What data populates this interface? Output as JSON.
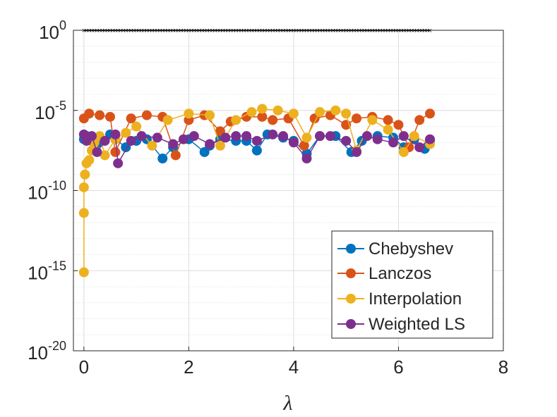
{
  "chart_data": {
    "type": "scatter",
    "title": "",
    "xlabel": "λ",
    "ylabel": "",
    "xlim": [
      -0.2,
      8
    ],
    "ylim_exp": [
      -20,
      0
    ],
    "yscale": "log",
    "grid": true,
    "x_ticks": [
      "0",
      "2",
      "4",
      "6",
      "8"
    ],
    "y_ticks": [
      {
        "base": "10",
        "exp": "0"
      },
      {
        "base": "10",
        "exp": "-5"
      },
      {
        "base": "10",
        "exp": "-10"
      },
      {
        "base": "10",
        "exp": "-15"
      },
      {
        "base": "10",
        "exp": "-20"
      }
    ],
    "legend_position": "bottom-right",
    "top_marker_series": {
      "name": "",
      "color": "#000000",
      "x_range": [
        0,
        6.6
      ],
      "y_exp": 0
    },
    "series": [
      {
        "name": "Chebyshev",
        "color": "#0072BD",
        "x": [
          0.0,
          0.05,
          0.15,
          0.3,
          0.5,
          0.6,
          0.8,
          1.0,
          1.2,
          1.5,
          1.7,
          2.0,
          2.3,
          2.4,
          2.6,
          2.9,
          3.1,
          3.3,
          3.5,
          3.8,
          4.0,
          4.25,
          4.5,
          4.8,
          5.1,
          5.3,
          5.6,
          5.9,
          6.1,
          6.3,
          6.5,
          6.6
        ],
        "y_exp": [
          -6.8,
          -6.6,
          -6.9,
          -7.0,
          -6.5,
          -6.8,
          -7.3,
          -6.9,
          -6.8,
          -8.0,
          -7.3,
          -6.8,
          -7.6,
          -7.2,
          -6.8,
          -6.9,
          -6.9,
          -7.5,
          -6.5,
          -6.7,
          -6.9,
          -7.7,
          -6.6,
          -6.6,
          -7.6,
          -6.9,
          -6.6,
          -6.7,
          -7.3,
          -6.8,
          -7.4,
          -6.9
        ]
      },
      {
        "name": "Lanczos",
        "color": "#D95319",
        "x": [
          0.0,
          0.1,
          0.3,
          0.5,
          0.6,
          0.9,
          1.2,
          1.5,
          1.75,
          2.0,
          2.3,
          2.6,
          2.8,
          3.1,
          3.4,
          3.6,
          3.9,
          4.2,
          4.4,
          4.7,
          5.0,
          5.2,
          5.5,
          5.8,
          6.0,
          6.2,
          6.4,
          6.6
        ],
        "y_exp": [
          -5.5,
          -5.2,
          -5.3,
          -5.4,
          -7.6,
          -5.5,
          -5.3,
          -5.4,
          -7.8,
          -5.6,
          -5.3,
          -6.3,
          -5.7,
          -5.4,
          -5.4,
          -5.6,
          -5.5,
          -7.2,
          -5.5,
          -5.3,
          -5.9,
          -5.5,
          -5.4,
          -5.6,
          -5.9,
          -7.3,
          -5.6,
          -5.2
        ]
      },
      {
        "name": "Interpolation",
        "color": "#EDB120",
        "x": [
          0.0,
          0.0,
          0.0,
          0.02,
          0.05,
          0.1,
          0.15,
          0.2,
          0.3,
          0.4,
          0.6,
          0.8,
          1.0,
          1.3,
          1.6,
          2.0,
          2.4,
          2.6,
          2.9,
          3.2,
          3.4,
          3.7,
          4.0,
          4.25,
          4.5,
          4.8,
          5.0,
          5.2,
          5.5,
          5.8,
          6.1,
          6.3,
          6.6
        ],
        "y_exp": [
          -15.1,
          -11.4,
          -9.8,
          -9.0,
          -8.3,
          -8.1,
          -7.5,
          -7.0,
          -6.6,
          -7.8,
          -6.8,
          -6.4,
          -6.0,
          -7.2,
          -5.6,
          -5.2,
          -5.3,
          -7.2,
          -5.6,
          -5.1,
          -4.9,
          -5.0,
          -5.2,
          -6.7,
          -5.1,
          -5.0,
          -5.2,
          -7.5,
          -5.6,
          -6.2,
          -7.6,
          -6.6,
          -7.1
        ]
      },
      {
        "name": "Weighted LS",
        "color": "#7E2F8E",
        "x": [
          0.0,
          0.05,
          0.15,
          0.25,
          0.4,
          0.6,
          0.65,
          0.9,
          1.1,
          1.4,
          1.7,
          1.9,
          2.1,
          2.4,
          2.7,
          2.9,
          3.1,
          3.3,
          3.6,
          3.8,
          4.0,
          4.25,
          4.5,
          4.7,
          5.0,
          5.2,
          5.4,
          5.6,
          5.9,
          6.1,
          6.4,
          6.6
        ],
        "y_exp": [
          -6.5,
          -6.9,
          -6.6,
          -7.6,
          -6.9,
          -6.5,
          -8.3,
          -6.9,
          -6.6,
          -6.7,
          -7.1,
          -6.8,
          -6.6,
          -7.1,
          -6.7,
          -6.6,
          -6.6,
          -6.9,
          -6.5,
          -6.6,
          -7.0,
          -8.0,
          -6.6,
          -6.6,
          -6.9,
          -7.6,
          -6.6,
          -6.8,
          -7.0,
          -6.6,
          -7.3,
          -6.8
        ]
      }
    ]
  }
}
